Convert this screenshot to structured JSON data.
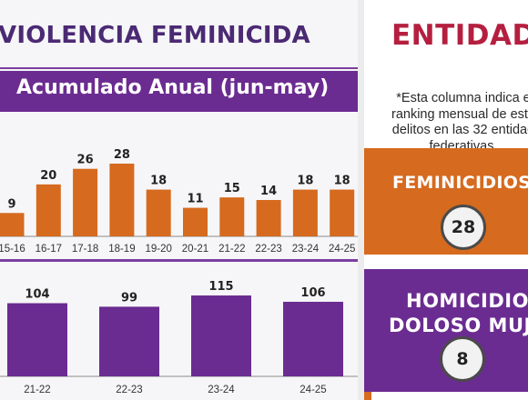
{
  "header": {
    "title": "VIOLENCIA FEMINICIDA",
    "subtitle": "Acumulado Anual (jun-may)"
  },
  "side": {
    "title": "ENTIDAD",
    "note_lines": [
      "*Esta columna indica e",
      "ranking mensual de esto",
      "delitos en las 32 entidad",
      "federativas."
    ],
    "feminicidios": {
      "label": "FEMINICIDIOS",
      "rank": "28"
    },
    "homicidio": {
      "label_line1": "HOMICIDIO",
      "label_line2": "DOLOSO MUJE",
      "rank": "8"
    }
  },
  "colors": {
    "purple": "#6b2c91",
    "title_purple": "#4b2a74",
    "orange": "#d66a1e",
    "entidad_red": "#b51f3f"
  },
  "chart_data": [
    {
      "type": "bar",
      "categories": [
        "15-16",
        "16-17",
        "17-18",
        "18-19",
        "19-20",
        "20-21",
        "21-22",
        "22-23",
        "23-24",
        "24-25"
      ],
      "values": [
        9,
        20,
        26,
        28,
        18,
        11,
        15,
        14,
        18,
        18
      ],
      "ylim": [
        0,
        28
      ],
      "color": "#d66a1e",
      "grid": false
    },
    {
      "type": "bar",
      "categories": [
        "21-22",
        "22-23",
        "23-24",
        "24-25"
      ],
      "values": [
        104,
        99,
        115,
        106
      ],
      "ylim": [
        0,
        115
      ],
      "color": "#6b2c91",
      "grid": false
    }
  ]
}
